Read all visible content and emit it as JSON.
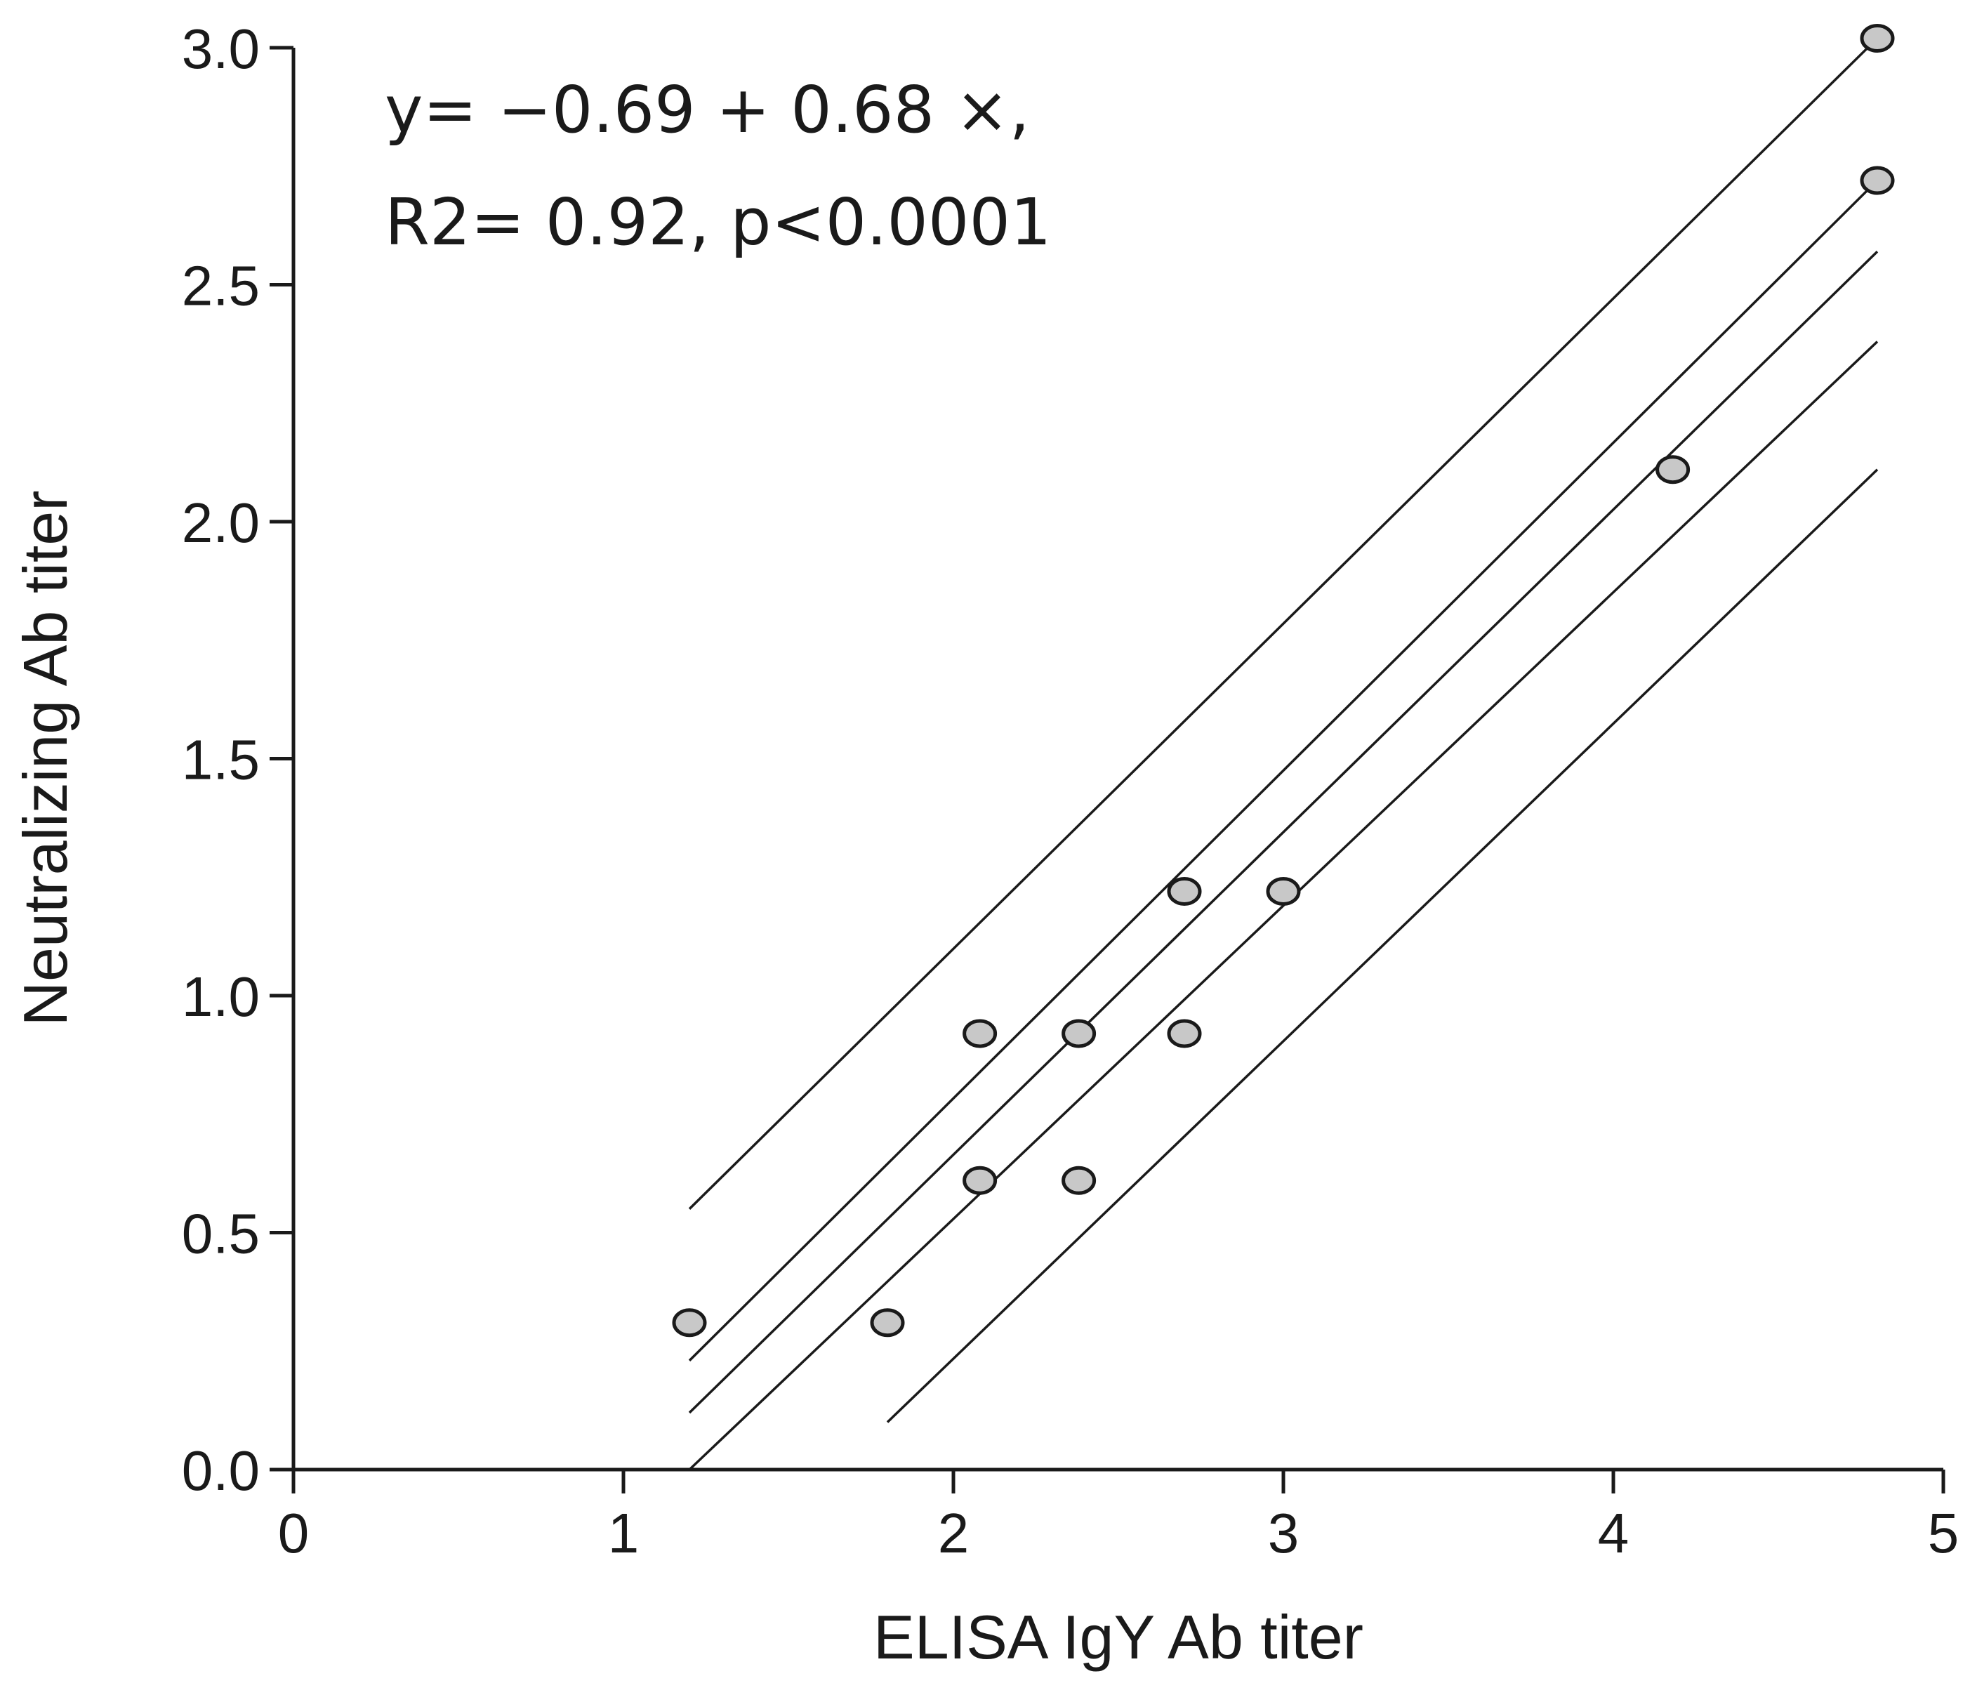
{
  "chart_data": {
    "type": "scatter",
    "title": "",
    "xlabel": "ELISA IgY Ab titer",
    "ylabel": "Neutralizing Ab titer",
    "xlim": [
      0,
      5
    ],
    "ylim": [
      0,
      3
    ],
    "x_ticks": [
      "0",
      "1",
      "2",
      "3",
      "4",
      "5"
    ],
    "y_ticks": [
      "0.0",
      "0.5",
      "1.0",
      "1.5",
      "2.0",
      "2.5",
      "3.0"
    ],
    "grid": false,
    "annotations": [
      "y= −0.69 + 0.68 ×,",
      "R2= 0.92, p<0.0001"
    ],
    "points": [
      {
        "x": 1.2,
        "y": 0.31
      },
      {
        "x": 1.8,
        "y": 0.31
      },
      {
        "x": 2.08,
        "y": 0.61
      },
      {
        "x": 2.08,
        "y": 0.92
      },
      {
        "x": 2.38,
        "y": 0.61
      },
      {
        "x": 2.38,
        "y": 0.92
      },
      {
        "x": 2.7,
        "y": 0.92
      },
      {
        "x": 2.7,
        "y": 1.22
      },
      {
        "x": 3.0,
        "y": 1.22
      },
      {
        "x": 4.18,
        "y": 2.11
      },
      {
        "x": 4.8,
        "y": 2.72
      },
      {
        "x": 4.8,
        "y": 3.02
      }
    ],
    "lines": [
      {
        "role": "upper-prediction-band",
        "x": [
          1.2,
          4.8
        ],
        "y": [
          0.55,
          3.02
        ]
      },
      {
        "role": "upper-confidence-band",
        "x": [
          1.2,
          4.8
        ],
        "y": [
          0.23,
          2.72
        ]
      },
      {
        "role": "regression-fit",
        "x": [
          1.2,
          4.8
        ],
        "y": [
          0.12,
          2.57
        ]
      },
      {
        "role": "lower-confidence-band",
        "x": [
          1.2,
          4.8
        ],
        "y": [
          0.0,
          2.38
        ]
      },
      {
        "role": "lower-prediction-band",
        "x": [
          1.8,
          4.8
        ],
        "y": [
          0.1,
          2.11
        ]
      }
    ]
  }
}
